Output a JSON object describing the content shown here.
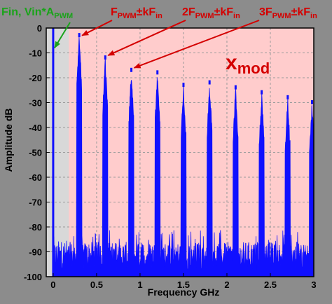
{
  "chart_data": {
    "type": "line",
    "title": "",
    "xlabel": "Frequency GHz",
    "ylabel": "Amplitude dB",
    "xlim": [
      -0.08,
      3.0
    ],
    "ylim": [
      -100,
      0
    ],
    "x_ticks": [
      0,
      0.5,
      1,
      1.5,
      2,
      2.5,
      3
    ],
    "x_tick_labels": [
      "0",
      "0.5",
      "1",
      "1.5",
      "2",
      "2.5",
      "3"
    ],
    "y_ticks": [
      0,
      -10,
      -20,
      -30,
      -40,
      -50,
      -60,
      -70,
      -80,
      -90,
      -100
    ],
    "y_tick_labels": [
      "0",
      "-10",
      "-20",
      "-30",
      "-40",
      "-50",
      "-60",
      "-70",
      "-80",
      "-90",
      "-100"
    ],
    "grid": true,
    "shaded_region": {
      "x_from": 0.18,
      "x_to": 3.0,
      "label": "x",
      "label_sub": "mod",
      "color": "#ffcccc"
    },
    "series": [
      {
        "color": "#1010ff",
        "baseline_db": -92,
        "carrier": {
          "x": 0.0,
          "y": 0
        },
        "peaks": [
          {
            "x": 0.3,
            "y": -2
          },
          {
            "x": 0.6,
            "y": -11
          },
          {
            "x": 0.9,
            "y": -16
          },
          {
            "x": 1.2,
            "y": -17
          },
          {
            "x": 1.5,
            "y": -22
          },
          {
            "x": 1.8,
            "y": -21
          },
          {
            "x": 2.1,
            "y": -23
          },
          {
            "x": 2.4,
            "y": -25
          },
          {
            "x": 2.7,
            "y": -27
          },
          {
            "x": 2.98,
            "y": -29
          }
        ]
      }
    ],
    "annotations": [
      {
        "text": "Fin, Vin*A",
        "sub": "PWM",
        "color": "#1aa31a",
        "arrow_to": {
          "x": 0.0,
          "y": -8
        }
      },
      {
        "text": "F",
        "sub": "PWM",
        "suffix": "±kF",
        "sub2": "in",
        "color": "#d40000",
        "arrow_to": {
          "x": 0.3,
          "y": -3
        }
      },
      {
        "text": "2F",
        "sub": "PWM",
        "suffix": "±kF",
        "sub2": "in",
        "color": "#d40000",
        "arrow_to": {
          "x": 0.6,
          "y": -11
        }
      },
      {
        "text": "3F",
        "sub": "PWM",
        "suffix": "±kF",
        "sub2": "in",
        "color": "#d40000",
        "arrow_to": {
          "x": 0.9,
          "y": -16
        }
      }
    ]
  }
}
